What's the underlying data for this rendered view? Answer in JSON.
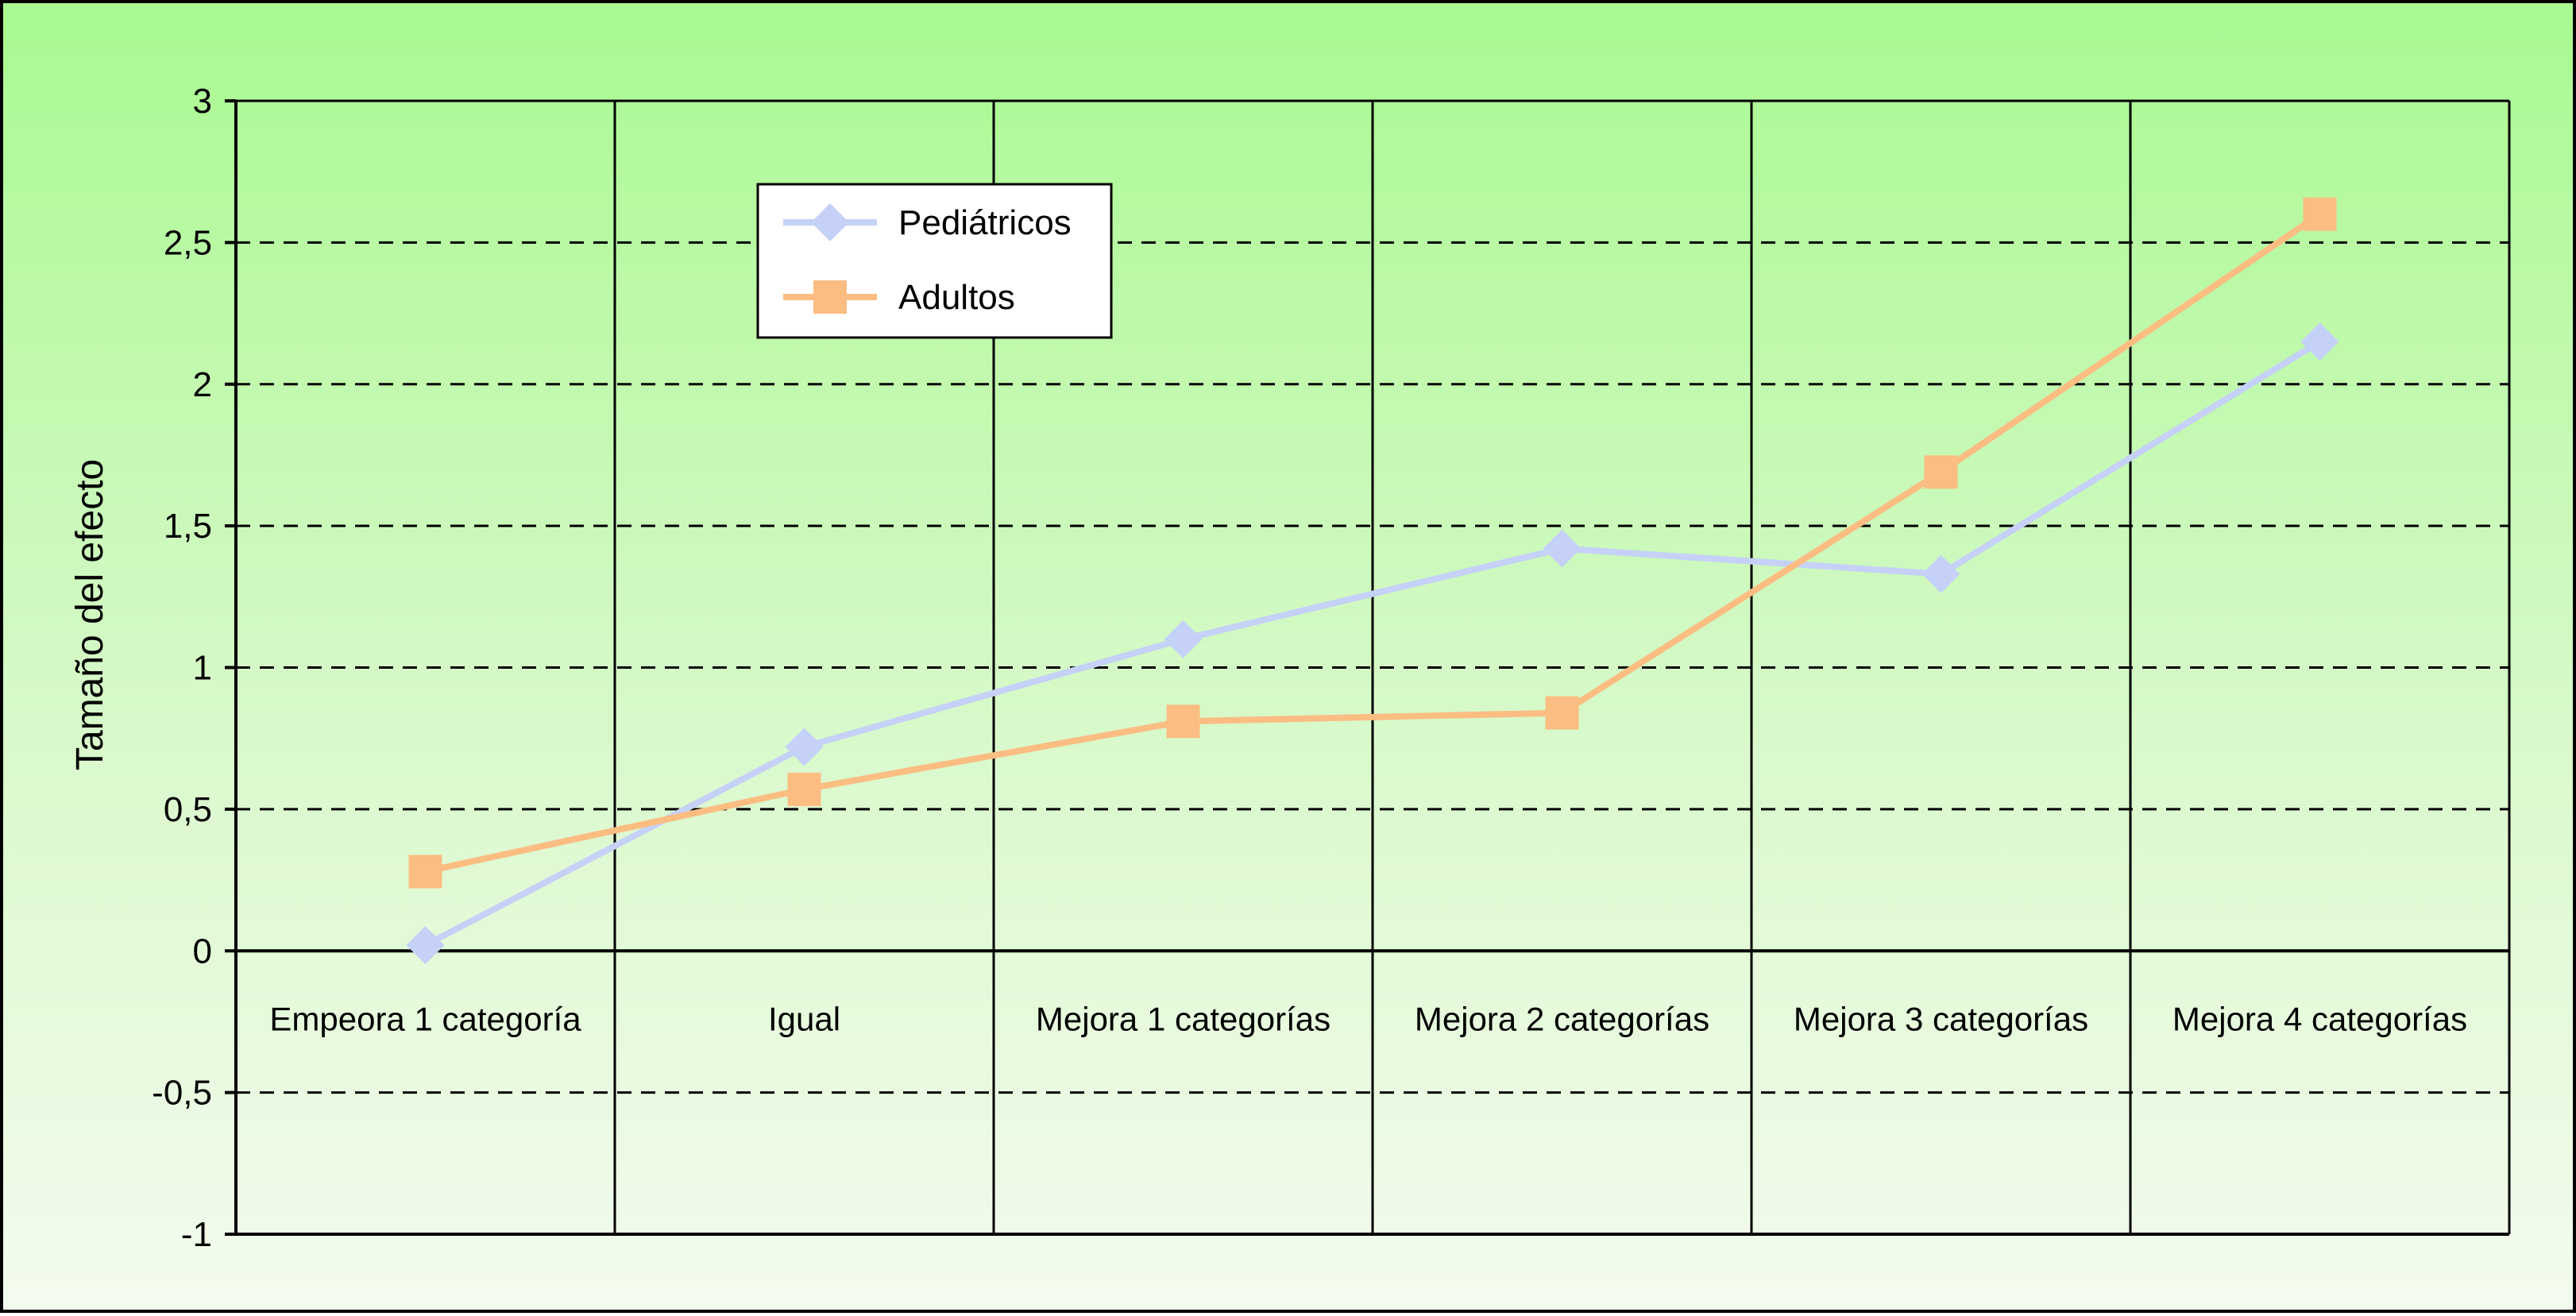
{
  "chart_data": {
    "type": "line",
    "ylabel": "Tamaño del efecto",
    "ylim": [
      -1,
      3
    ],
    "yticks": [
      "-1",
      "-0,5",
      "0",
      "0,5",
      "1",
      "1,5",
      "2",
      "2,5",
      "3"
    ],
    "ytick_values": [
      -1,
      -0.5,
      0,
      0.5,
      1,
      1.5,
      2,
      2.5,
      3
    ],
    "categories": [
      "Empeora 1 categoría",
      "Igual",
      "Mejora 1 categorías",
      "Mejora 2 categorías",
      "Mejora 3 categorías",
      "Mejora 4 categorías"
    ],
    "grid": "horizontal dashed, vertical solid",
    "legend_position": "top-left",
    "series": [
      {
        "name": "Pediátricos",
        "values": [
          0.02,
          0.72,
          1.1,
          1.42,
          1.33,
          2.15
        ],
        "color": "#c5d1f7",
        "marker": "diamond"
      },
      {
        "name": "Adultos",
        "values": [
          0.28,
          0.57,
          0.81,
          0.84,
          1.69,
          2.6
        ],
        "color": "#fbbd82",
        "marker": "square"
      }
    ]
  }
}
